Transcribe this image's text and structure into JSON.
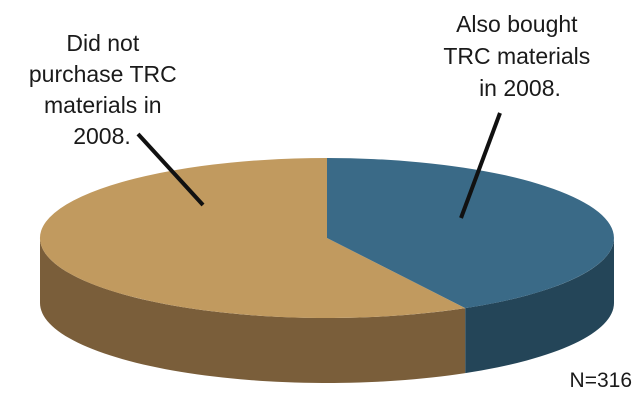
{
  "chart_data": {
    "type": "pie",
    "style": "3d",
    "slices": [
      {
        "label_lines": [
          "Did not",
          "purchase TRC",
          "materials in",
          "2008."
        ],
        "value": 58,
        "top_color": "#c19a5f",
        "side_color": "#7a5e3a"
      },
      {
        "label_lines": [
          "Also bought",
          "TRC materials",
          "in 2008."
        ],
        "value": 42,
        "top_color": "#3a6a87",
        "side_color": "#244558"
      }
    ],
    "note": "N=316"
  }
}
